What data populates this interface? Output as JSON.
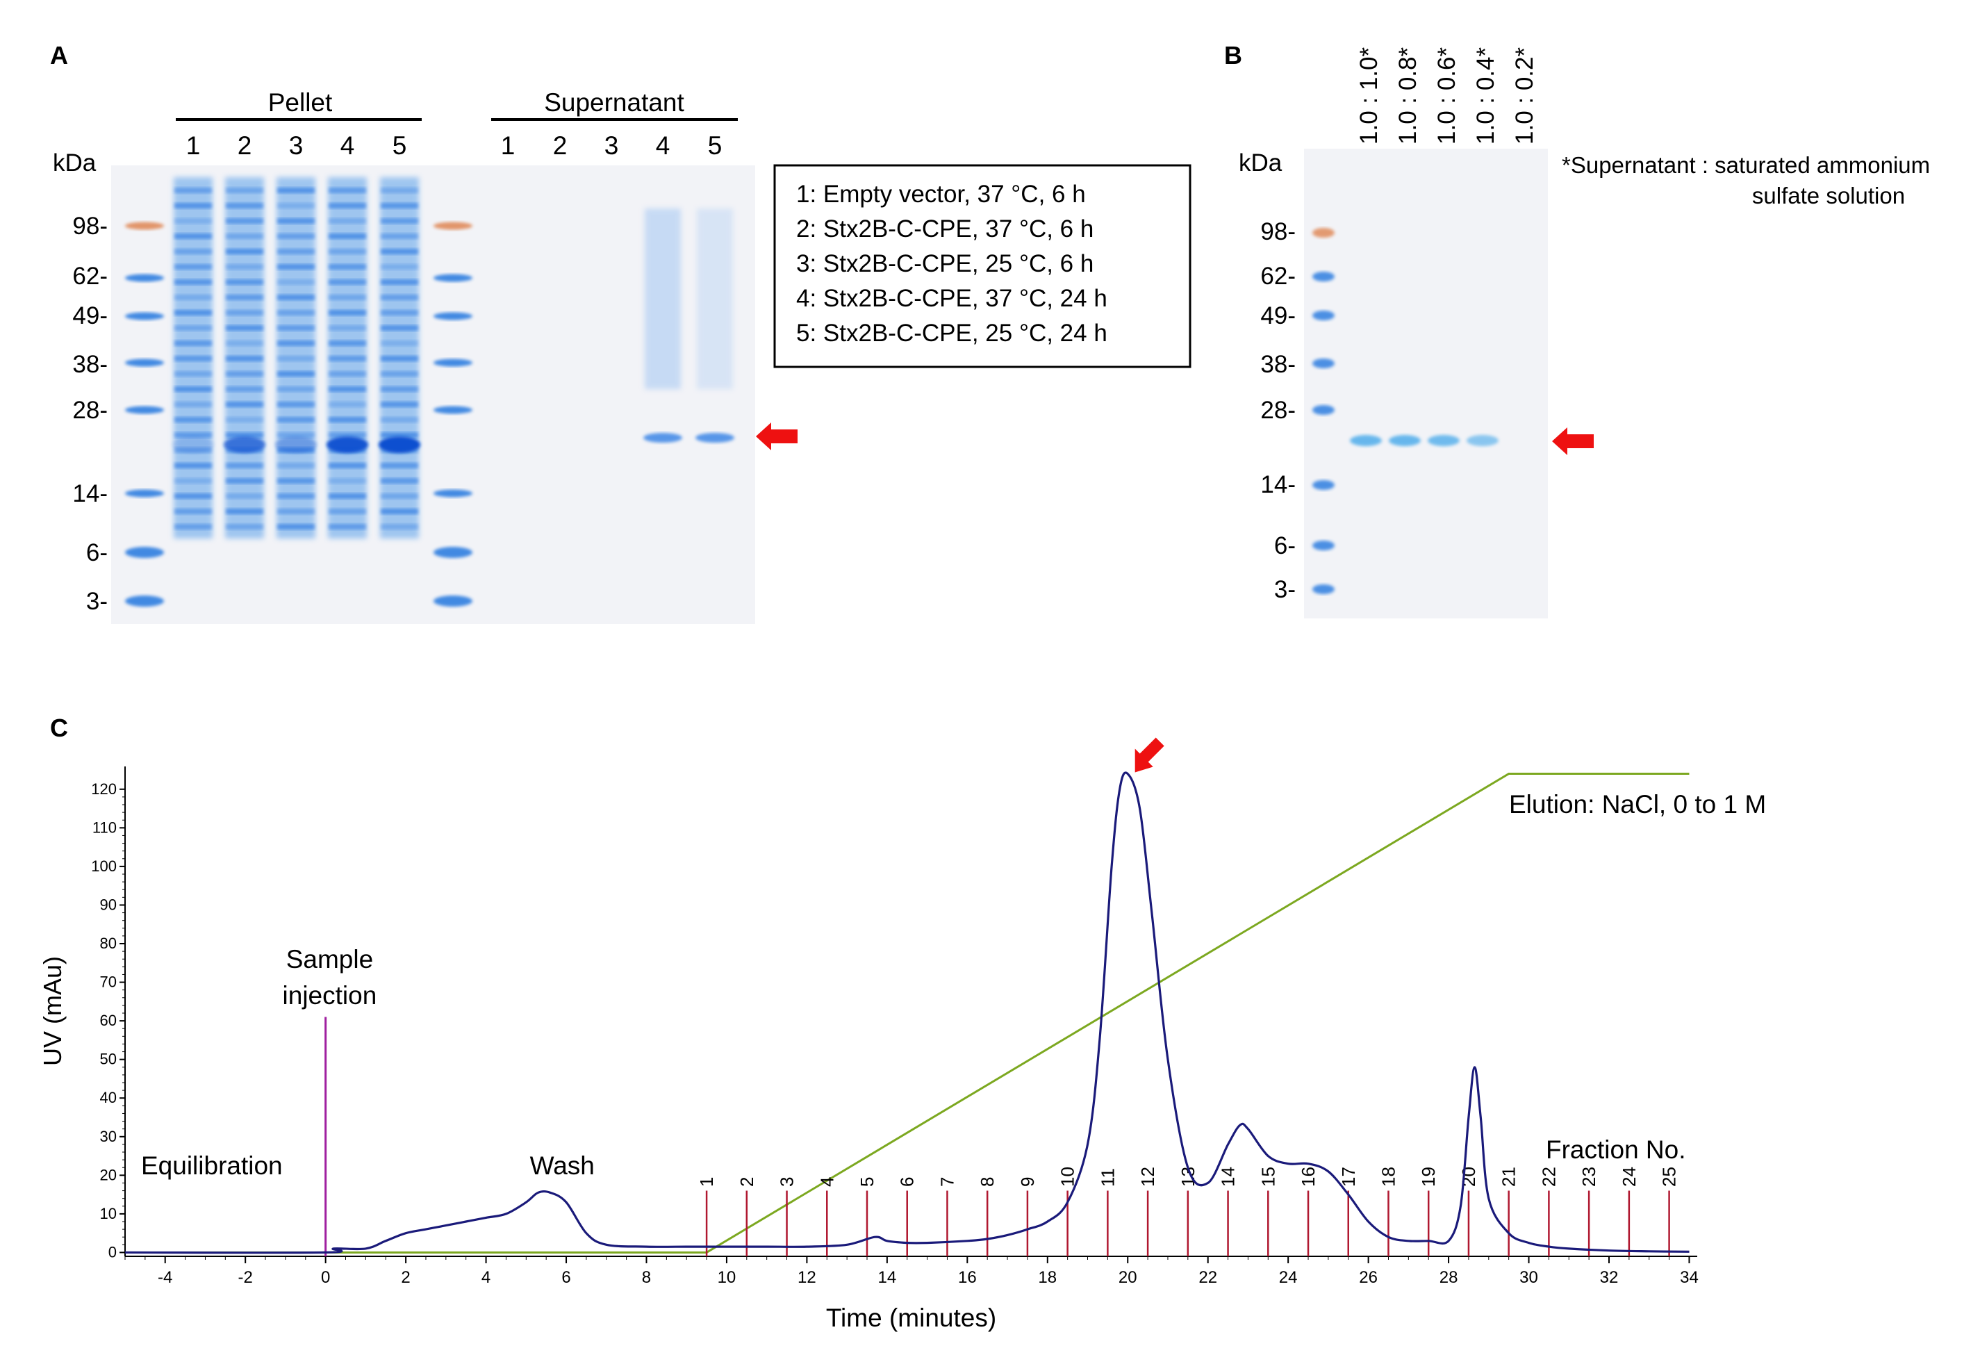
{
  "panelA": {
    "letter": "A",
    "kda_label": "kDa",
    "markers": [
      "98-",
      "62-",
      "49-",
      "38-",
      "28-",
      "14-",
      "6-",
      "3-"
    ],
    "pellet_label": "Pellet",
    "supernatant_label": "Supernatant",
    "pellet_lanes": [
      "1",
      "2",
      "3",
      "4",
      "5"
    ],
    "supernatant_lanes": [
      "1",
      "2",
      "3",
      "4",
      "5"
    ],
    "legend": [
      "1: Empty vector, 37 °C, 6 h",
      "2: Stx2B-C-CPE, 37 °C, 6 h",
      "3: Stx2B-C-CPE, 25 °C, 6 h",
      "4: Stx2B-C-CPE, 37 °C, 24 h",
      "5: Stx2B-C-CPE, 25 °C, 24 h"
    ]
  },
  "panelB": {
    "letter": "B",
    "kda_label": "kDa",
    "markers": [
      "98-",
      "62-",
      "49-",
      "38-",
      "28-",
      "14-",
      "6-",
      "3-"
    ],
    "lanes": [
      "1.0 : 1.0*",
      "1.0 : 0.8*",
      "1.0 : 0.6*",
      "1.0 : 0.4*",
      "1.0 : 0.2*"
    ],
    "note_line1": "*Supernatant : saturated ammonium",
    "note_line2": "sulfate solution"
  },
  "panelC": {
    "letter": "C",
    "annotations": {
      "sample_line1": "Sample",
      "sample_line2": "injection",
      "equilibration": "Equilibration",
      "wash": "Wash",
      "elution": "Elution: NaCl, 0 to 1 M",
      "fraction": "Fraction No."
    },
    "colors": {
      "uv": "#1a1a7a",
      "gradient": "#7ca820",
      "injection": "#a020a0",
      "fractions": "#b01830",
      "arrow": "#ee1111",
      "axis_label": "#2233aa"
    }
  },
  "chart_data": {
    "type": "line",
    "xlabel": "Time (minutes)",
    "ylabel": "UV (mAu)",
    "xlim": [
      -5,
      34.2
    ],
    "ylim": [
      -1,
      125
    ],
    "x_ticks": [
      "-4",
      "-2",
      "0",
      "2",
      "4",
      "6",
      "8",
      "10",
      "12",
      "14",
      "16",
      "18",
      "20",
      "22",
      "24",
      "26",
      "28",
      "30",
      "32",
      "34"
    ],
    "y_ticks": [
      "0",
      "10",
      "20",
      "30",
      "40",
      "50",
      "60",
      "70",
      "80",
      "90",
      "100",
      "110",
      "120"
    ],
    "series": [
      {
        "x": [
          -5,
          0,
          0.2,
          1,
          1.5,
          2,
          2.5,
          3,
          3.5,
          4,
          4.5,
          5,
          5.3,
          5.6,
          6,
          6.5,
          7,
          8,
          9,
          9.5,
          10,
          11,
          12,
          13,
          13.7,
          14,
          14.5,
          15,
          16,
          16.5,
          17,
          17.5,
          18,
          18.5,
          19,
          19.3,
          19.6,
          19.8,
          20,
          20.3,
          20.6,
          21,
          21.5,
          22,
          22.5,
          22.8,
          23,
          23.5,
          24,
          24.5,
          25,
          25.5,
          26,
          26.5,
          27,
          27.5,
          28,
          28.3,
          28.5,
          28.65,
          28.8,
          29,
          29.5,
          30,
          30.5,
          31,
          32,
          33,
          34
        ],
        "y": [
          0,
          0,
          1,
          1,
          3,
          5,
          6,
          7,
          8,
          9,
          10,
          13,
          15.5,
          15.5,
          13,
          5,
          2,
          1.5,
          1.5,
          1.5,
          1.5,
          1.5,
          1.5,
          2,
          4,
          3,
          2.5,
          2.5,
          3,
          3.5,
          4.5,
          6,
          8,
          13,
          28,
          55,
          100,
          120,
          124,
          115,
          88,
          50,
          22,
          18,
          28,
          33,
          32,
          25,
          23,
          23,
          21,
          15,
          8,
          4,
          3,
          3,
          3,
          12,
          35,
          48,
          35,
          14,
          5,
          2.5,
          1.5,
          1,
          0.5,
          0.3,
          0.2
        ]
      },
      {
        "x": [
          -5,
          9.5,
          29.5,
          34
        ],
        "y": [
          0,
          0,
          124,
          124
        ]
      }
    ],
    "injection_time": 0,
    "fraction_labels": [
      "1",
      "2",
      "3",
      "4",
      "5",
      "6",
      "7",
      "8",
      "9",
      "10",
      "11",
      "12",
      "13",
      "14",
      "15",
      "16",
      "17",
      "18",
      "19",
      "20",
      "21",
      "22",
      "23",
      "24",
      "25"
    ],
    "fraction_times": [
      9.5,
      10.5,
      11.5,
      12.5,
      13.5,
      14.5,
      15.5,
      16.5,
      17.5,
      18.5,
      19.5,
      20.5,
      21.5,
      22.5,
      23.5,
      24.5,
      25.5,
      26.5,
      27.5,
      28.5,
      29.5,
      30.5,
      31.5,
      32.5,
      33.5
    ]
  }
}
